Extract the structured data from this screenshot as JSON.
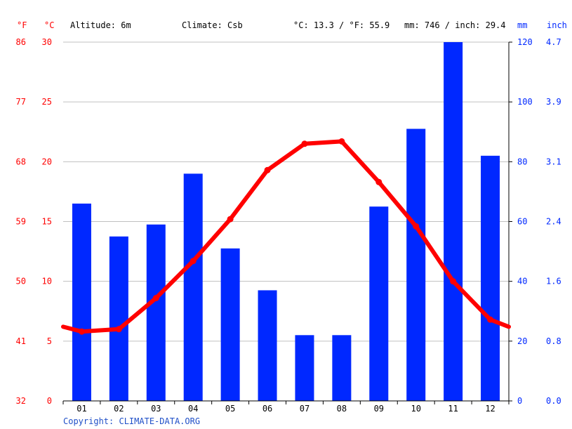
{
  "header": {
    "unit_f": "°F",
    "unit_c": "°C",
    "altitude": "Altitude: 6m",
    "climate": "Climate: Csb",
    "avg_temp": "°C: 13.3 / °F: 55.9",
    "precip_total": "mm: 746 / inch: 29.4",
    "unit_mm": "mm",
    "unit_inch": "inch"
  },
  "footer": {
    "copyright": "Copyright: CLIMATE-DATA.ORG"
  },
  "colors": {
    "temperature": "#ff0000",
    "precipitation": "#0028ff",
    "grid": "#c0c0c0",
    "axis": "#000000",
    "copyright": "#2050c8"
  },
  "chart_data": {
    "type": "bar",
    "categories": [
      "01",
      "02",
      "03",
      "04",
      "05",
      "06",
      "07",
      "08",
      "09",
      "10",
      "11",
      "12"
    ],
    "series": [
      {
        "type": "bar",
        "axis": "right",
        "values": [
          66,
          55,
          59,
          76,
          51,
          37,
          22,
          22,
          65,
          91,
          120,
          82
        ]
      },
      {
        "type": "line",
        "axis": "left",
        "values": [
          5.8,
          6.0,
          8.6,
          11.7,
          15.2,
          19.3,
          21.5,
          21.7,
          18.3,
          14.6,
          10.0,
          6.8
        ]
      }
    ],
    "left_axis": {
      "celsius_ticks": [
        0,
        5,
        10,
        15,
        20,
        25,
        30
      ],
      "fahrenheit_ticks": [
        32,
        41,
        50,
        59,
        68,
        77,
        86
      ],
      "ylim": [
        0,
        30
      ]
    },
    "right_axis": {
      "mm_ticks": [
        0,
        20,
        40,
        60,
        80,
        100,
        120
      ],
      "inch_ticks": [
        "0.0",
        "0.8",
        "1.6",
        "2.4",
        "3.1",
        "3.9",
        "4.7"
      ],
      "ylim": [
        0,
        120
      ]
    },
    "line_edge_values": {
      "start": 6.2,
      "end": 6.2
    },
    "grid": true
  }
}
